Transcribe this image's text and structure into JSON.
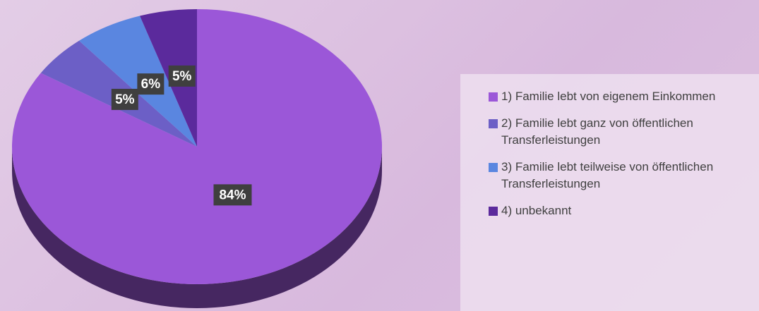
{
  "chart_data": {
    "type": "pie",
    "categories": [
      "1) Familie lebt von eigenem Einkommen",
      "2) Familie lebt ganz von öffentlichen Transferleistungen",
      "3) Familie lebt teilweise von öffentlichen Transferleistungen",
      "4) unbekannt"
    ],
    "values": [
      84,
      5,
      6,
      5
    ],
    "value_labels": [
      "84%",
      "5%",
      "6%",
      "5%"
    ],
    "colors": [
      "#9b57d8",
      "#6c5fc6",
      "#5a86e0",
      "#5b2a9c"
    ],
    "legend": "right"
  }
}
